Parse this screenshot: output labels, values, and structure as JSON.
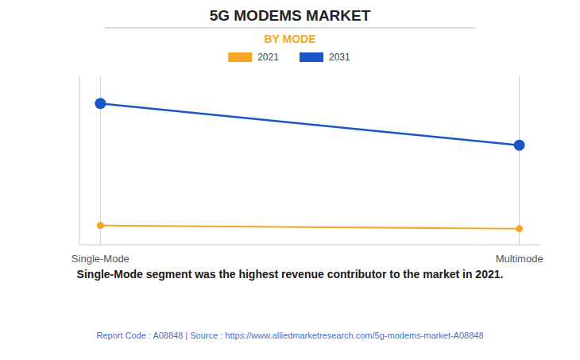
{
  "chart_data": {
    "type": "line",
    "title": "5G MODEMS MARKET",
    "subtitle": "BY MODE",
    "categories": [
      "Single-Mode",
      "Multimode"
    ],
    "series": [
      {
        "name": "2021",
        "color": "#F5A623",
        "values": [
          0.12,
          0.1
        ],
        "marker": "circle"
      },
      {
        "name": "2031",
        "color": "#1A56C4",
        "values": [
          0.88,
          0.62
        ],
        "marker": "circle"
      }
    ],
    "ylim": [
      0,
      1.05
    ],
    "tick_labels": "x",
    "grid": true,
    "legend": "top",
    "annotations": [
      "Single-Mode segment was the highest revenue contributor to the market in 2021.",
      "Report Code : A08848  |  Source : https://www.alliedmarketresearch.com/5g-modems-market-A08848"
    ]
  }
}
